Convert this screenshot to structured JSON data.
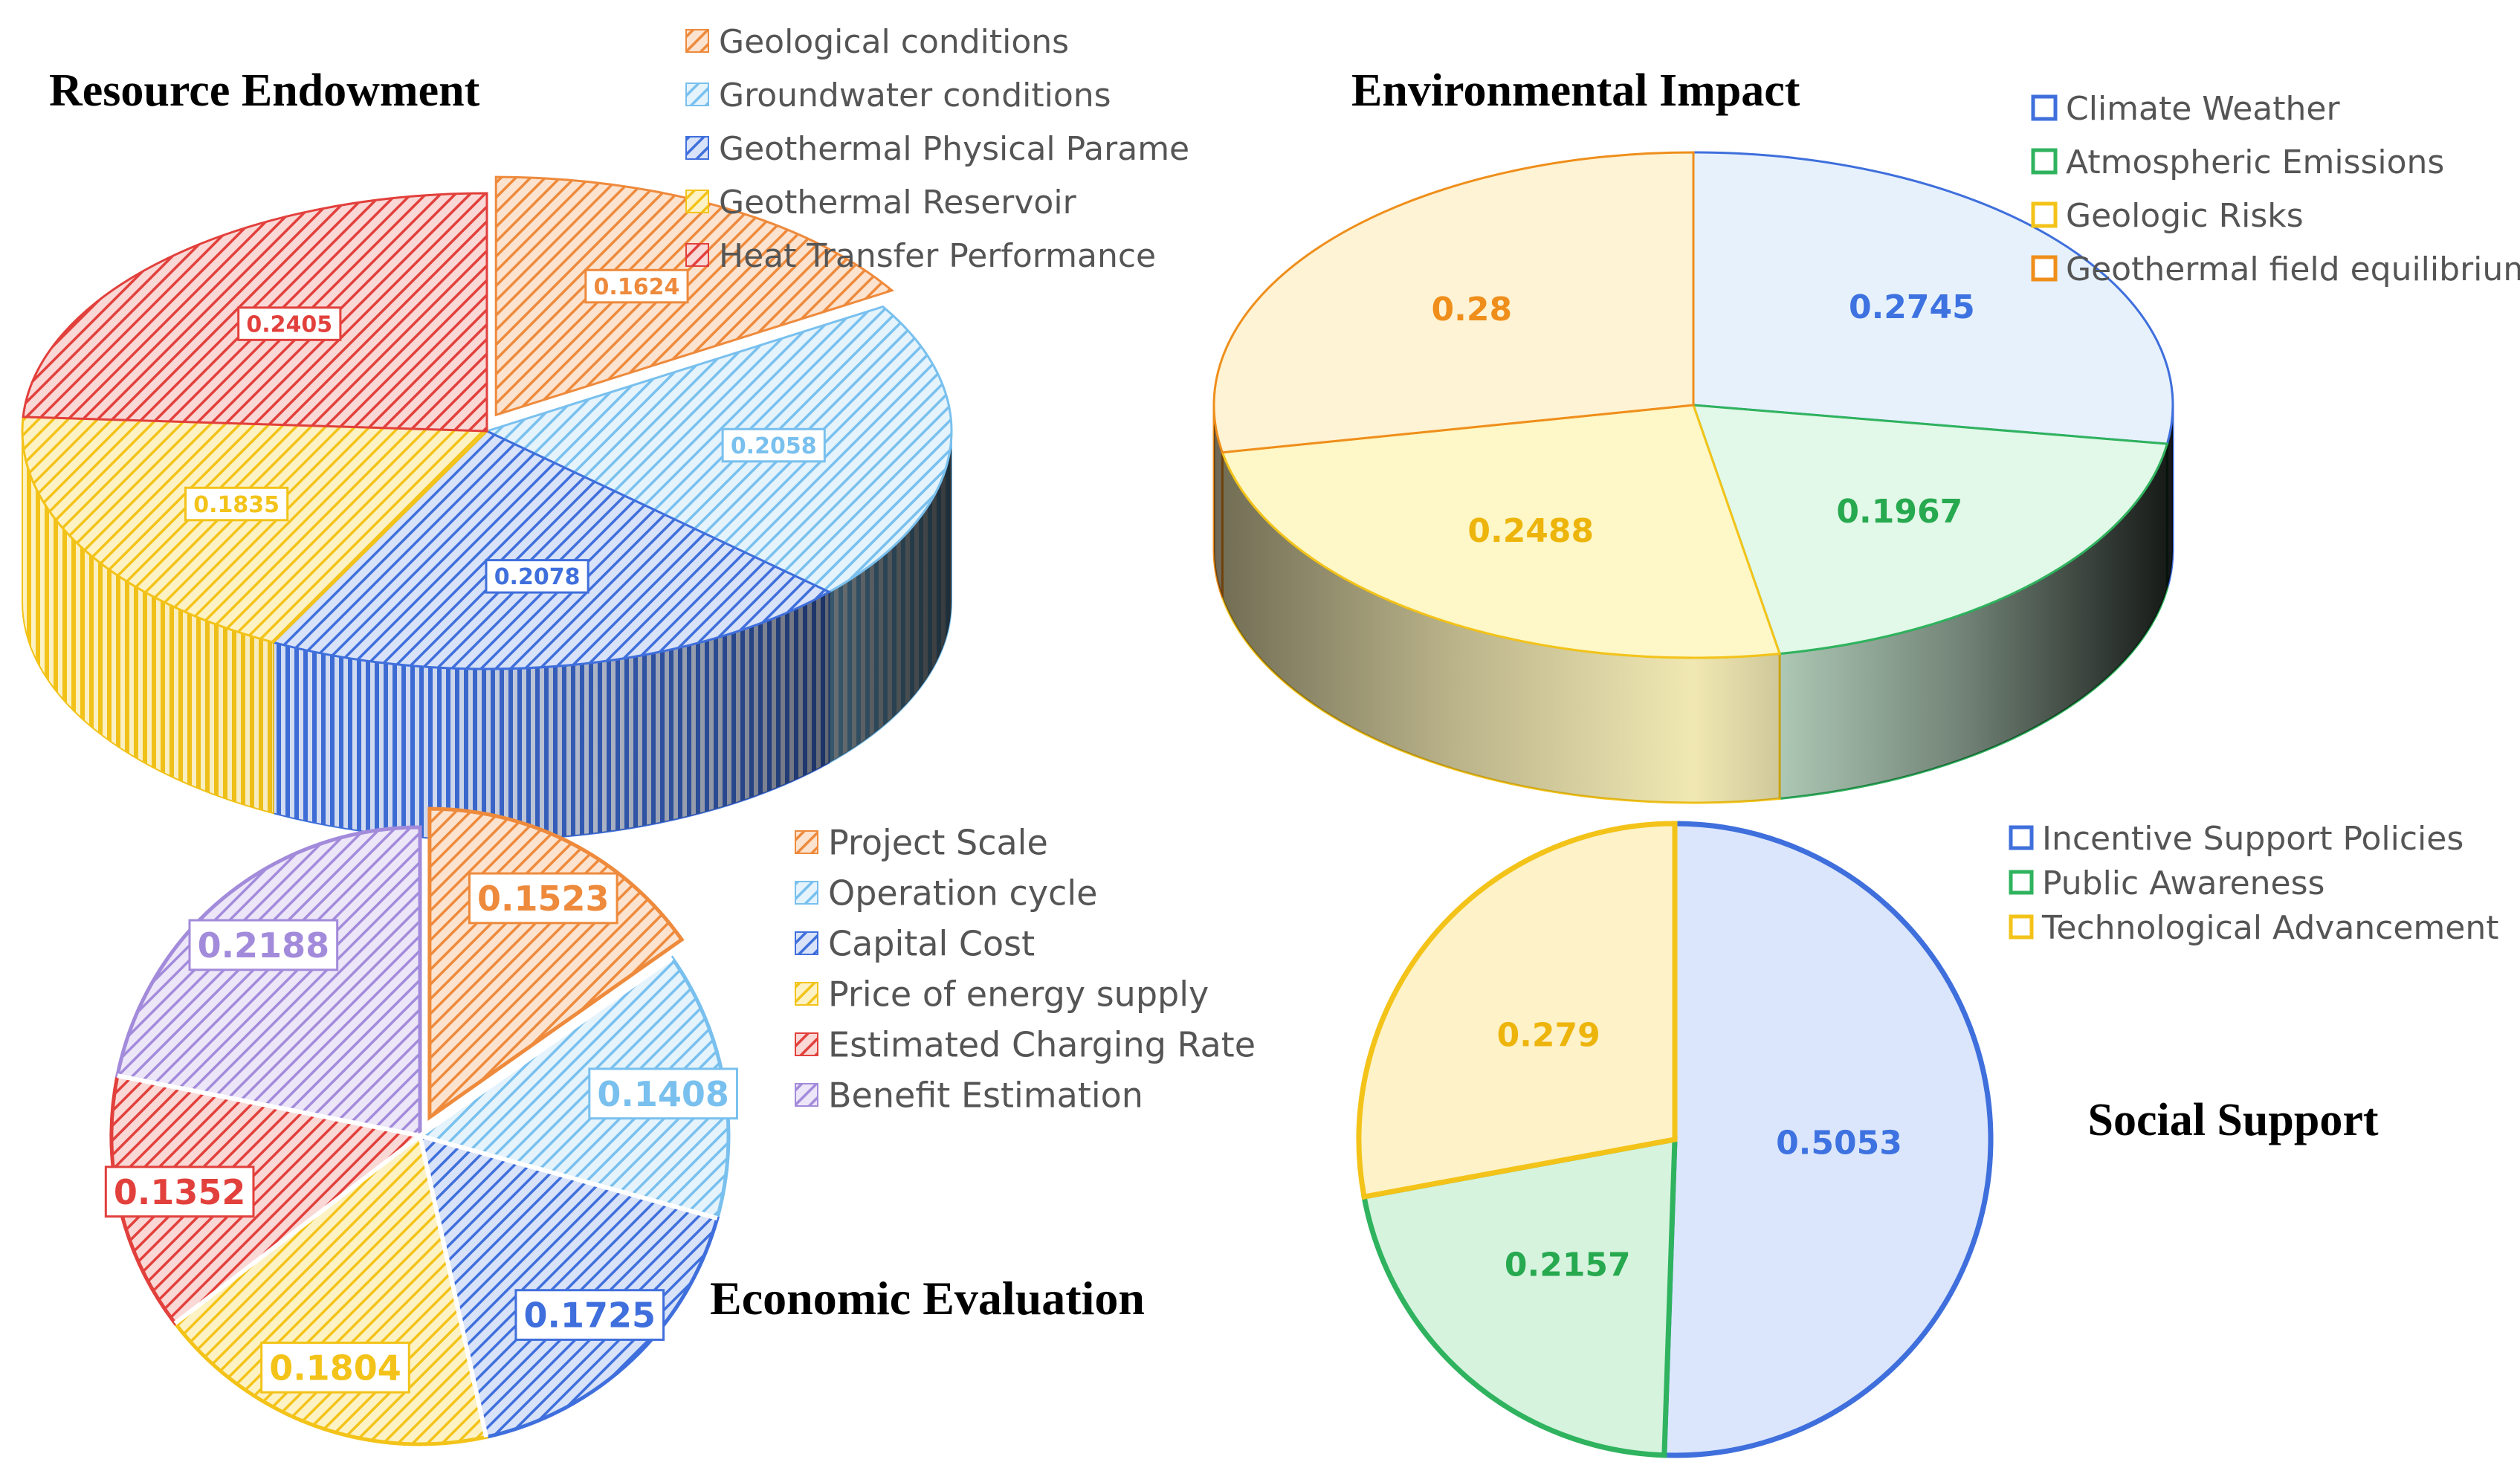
{
  "colors": {
    "orange": "#EE8A3C",
    "skyblue": "#79C0EE",
    "blue": "#3F6FDC",
    "yellow": "#F3C319",
    "red": "#E2403C",
    "purple": "#A38BDB",
    "green": "#2FB35E",
    "textOrange": "#EF8E1B",
    "textGreen": "#27A94F",
    "textYellow": "#EDB40B",
    "textBlue": "#3D72E0"
  },
  "chart_data": [
    {
      "id": "resource",
      "type": "pie",
      "style": "3d-hatched",
      "title": "Resource Endowment",
      "categories": [
        "Geological conditions",
        "Groundwater conditions",
        "Geothermal Physical Parame",
        "Geothermal Reservoir",
        "Heat Transfer Performance"
      ],
      "values": [
        0.1624,
        0.2058,
        0.2078,
        0.1835,
        0.2405
      ],
      "labels": [
        "0.1624",
        "0.2058",
        "0.2078",
        "0.1835",
        "0.2405"
      ],
      "colors": [
        "orange",
        "skyblue",
        "blue",
        "yellow",
        "red"
      ],
      "exploded": [
        true,
        false,
        false,
        false,
        false
      ],
      "legend": "top-right"
    },
    {
      "id": "environment",
      "type": "pie",
      "style": "3d-gradient",
      "title": "Environmental Impact",
      "categories": [
        "Climate Weather",
        "Atmospheric Emissions",
        "Geologic Risks",
        "Geothermal field equilibrium"
      ],
      "values": [
        0.2745,
        0.1967,
        0.2488,
        0.28
      ],
      "labels": [
        "0.2745",
        "0.1967",
        "0.2488",
        "0.28"
      ],
      "colors": [
        "blue",
        "green",
        "yellow",
        "textOrange"
      ],
      "legend": "top-right"
    },
    {
      "id": "economic",
      "type": "pie",
      "style": "2d-hatched",
      "title": "Economic Evaluation",
      "categories": [
        "Project Scale",
        "Operation cycle",
        "Capital Cost",
        "Price of energy supply",
        "Estimated Charging Rate",
        "Benefit Estimation"
      ],
      "values": [
        0.1523,
        0.1408,
        0.1725,
        0.1804,
        0.1352,
        0.2188
      ],
      "labels": [
        "0.1523",
        "0.1408",
        "0.1725",
        "0.1804",
        "0.1352",
        "0.2188"
      ],
      "colors": [
        "orange",
        "skyblue",
        "blue",
        "yellow",
        "red",
        "purple"
      ],
      "exploded": [
        true,
        false,
        false,
        false,
        false,
        false
      ],
      "legend": "right"
    },
    {
      "id": "social",
      "type": "pie",
      "style": "2d-flat",
      "title": "Social Support",
      "categories": [
        "Incentive Support Policies",
        "Public Awareness",
        "Technological Advancement"
      ],
      "values": [
        0.5053,
        0.2157,
        0.279
      ],
      "labels": [
        "0.5053",
        "0.2157",
        "0.279"
      ],
      "colors": [
        "blue",
        "green",
        "yellow"
      ],
      "legend": "top-right"
    }
  ]
}
